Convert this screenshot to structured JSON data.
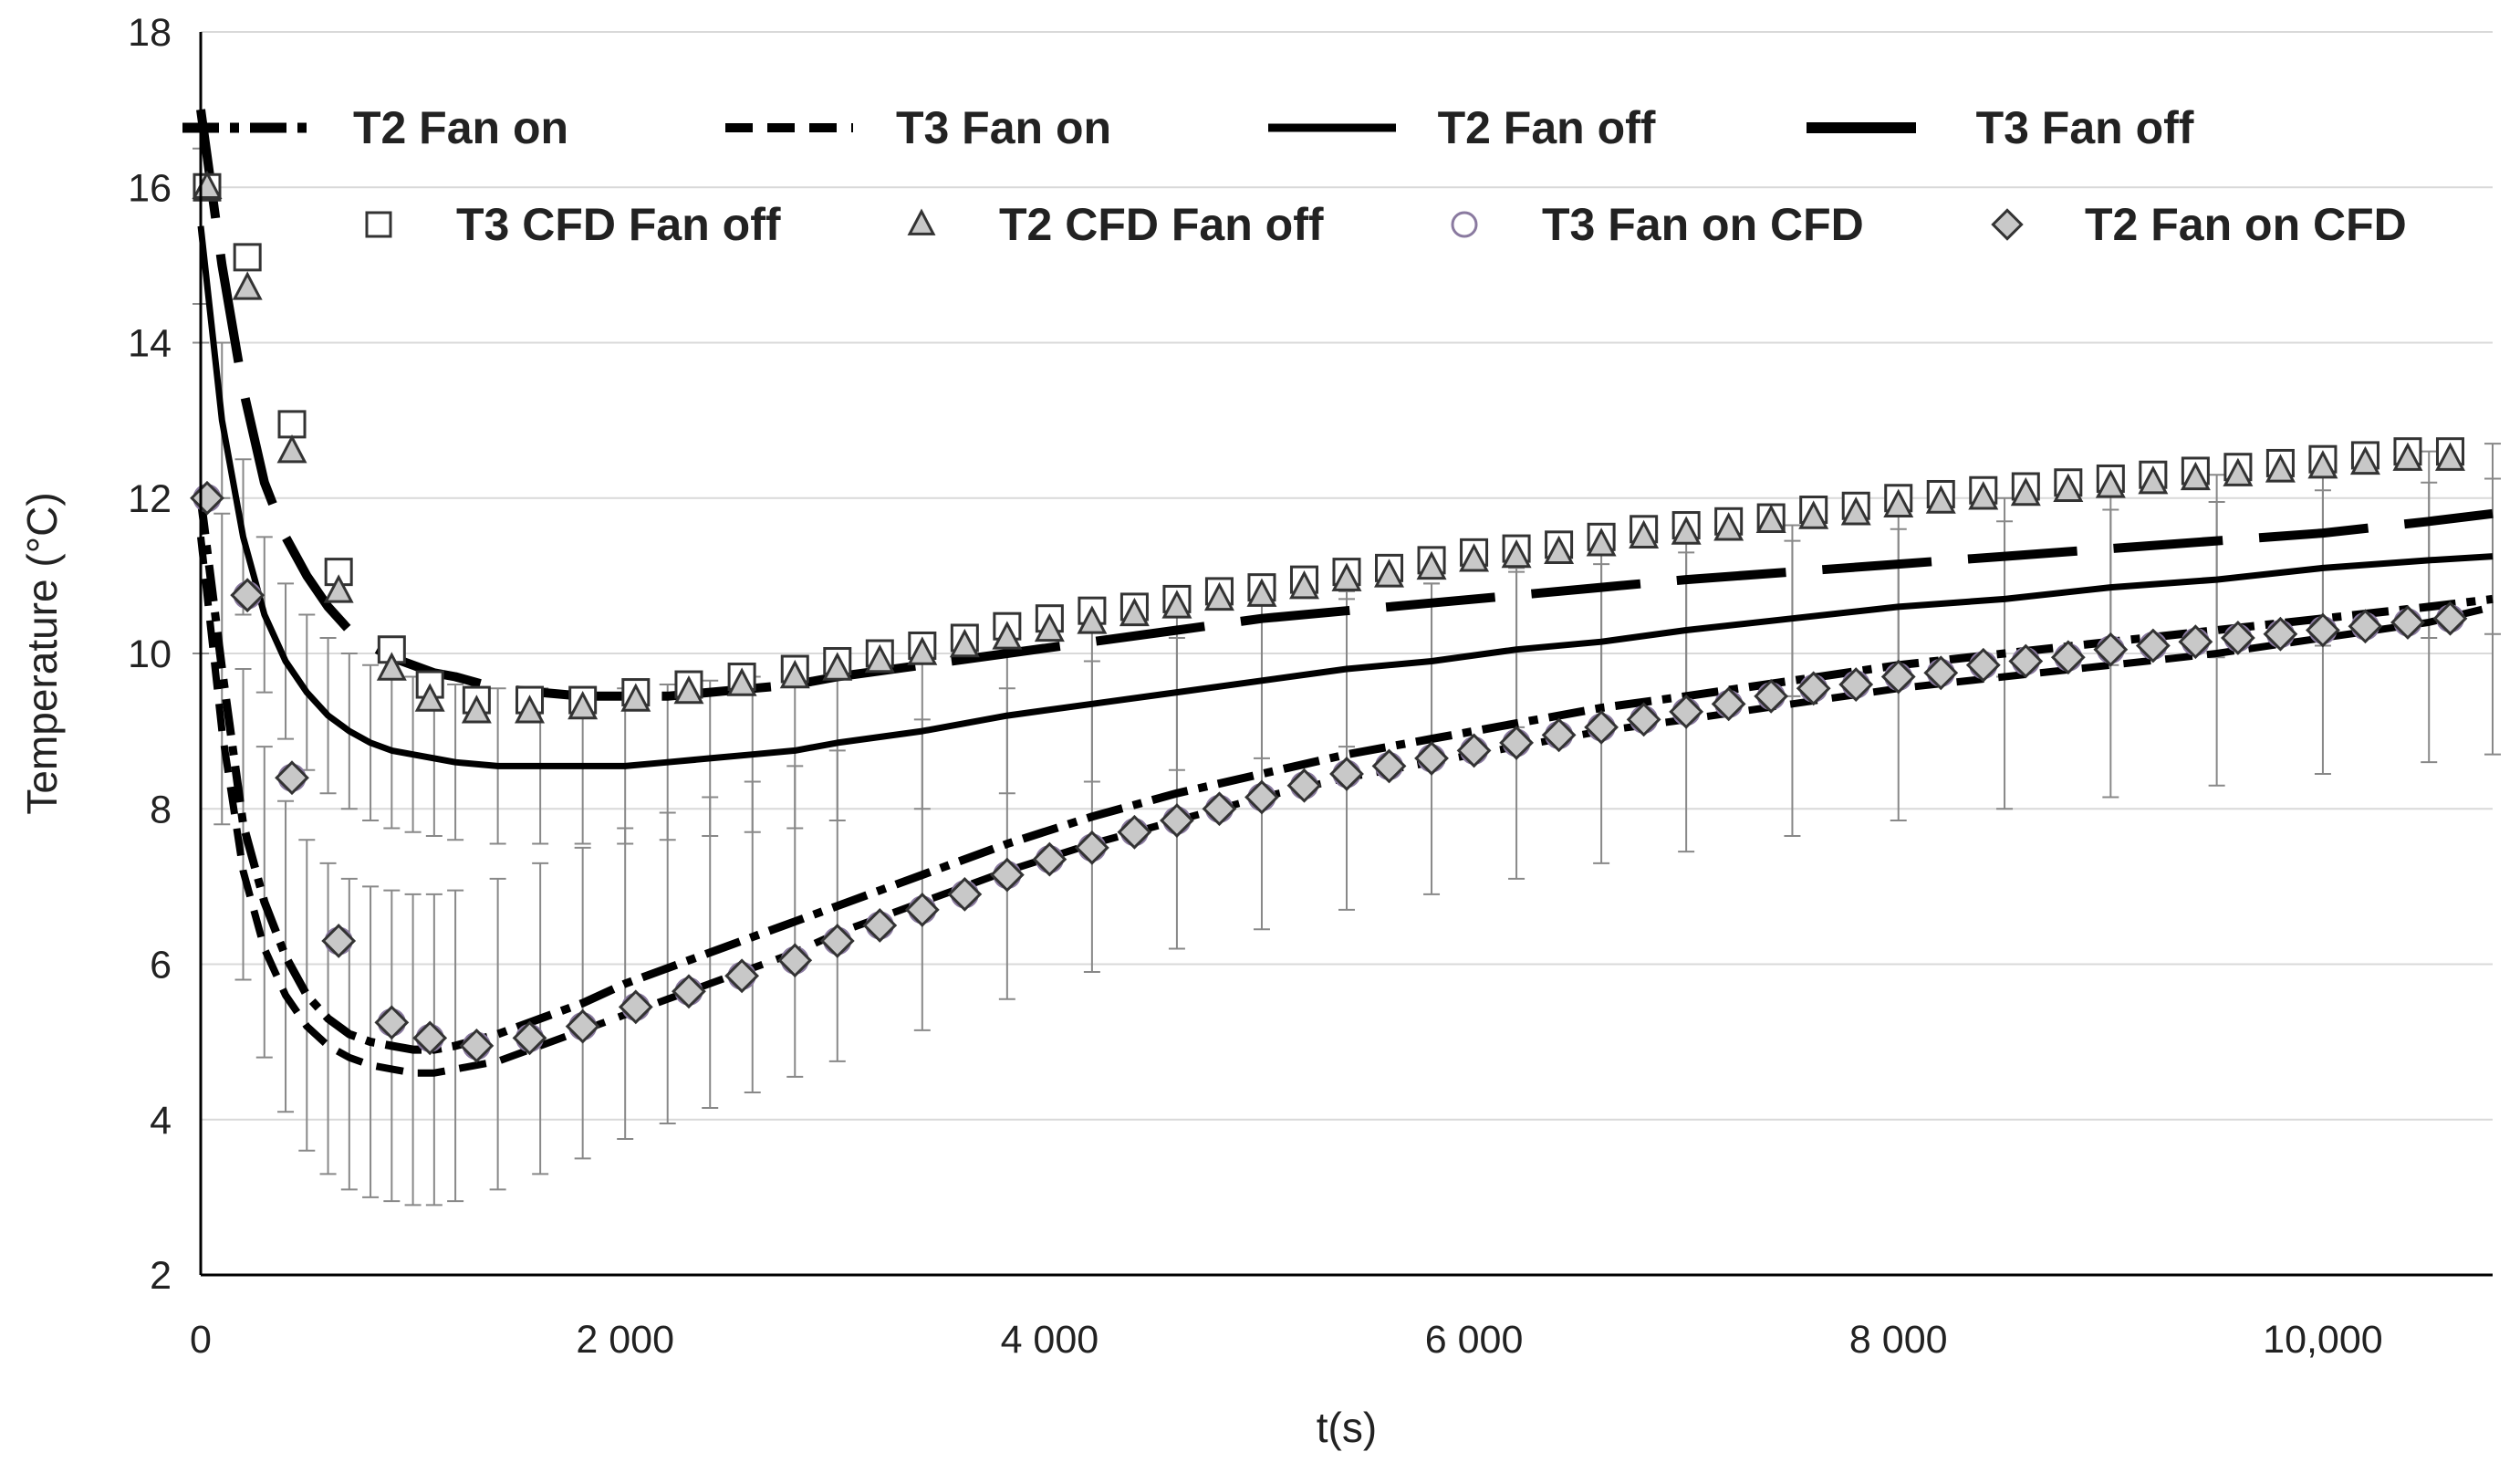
{
  "chart_data": {
    "type": "line",
    "title": "",
    "xlabel": "t(s)",
    "ylabel": "Temperature (°C)",
    "xlim": [
      0,
      10800
    ],
    "ylim": [
      2,
      18
    ],
    "grid": true,
    "legend_position": "top",
    "x_ticks": [
      {
        "value": 0,
        "label": "0"
      },
      {
        "value": 2000,
        "label": "2 000"
      },
      {
        "value": 4000,
        "label": "4 000"
      },
      {
        "value": 6000,
        "label": "6 000"
      },
      {
        "value": 8000,
        "label": "8 000"
      },
      {
        "value": 10000,
        "label": "10,000"
      }
    ],
    "y_ticks": [
      {
        "value": 2,
        "label": "2"
      },
      {
        "value": 4,
        "label": "4"
      },
      {
        "value": 6,
        "label": "6"
      },
      {
        "value": 8,
        "label": "8"
      },
      {
        "value": 10,
        "label": "10"
      },
      {
        "value": 12,
        "label": "12"
      },
      {
        "value": 14,
        "label": "14"
      },
      {
        "value": 16,
        "label": "16"
      },
      {
        "value": 18,
        "label": "18"
      }
    ],
    "series": [
      {
        "name": "T2 Fan on",
        "kind": "line",
        "style": "dash-dot",
        "x": [
          0,
          100,
          200,
          300,
          400,
          500,
          600,
          700,
          800,
          900,
          1000,
          1100,
          1200,
          1400,
          1600,
          1800,
          2000,
          2200,
          2400,
          2600,
          2800,
          3000,
          3400,
          3800,
          4200,
          4600,
          5000,
          5400,
          5800,
          6200,
          6600,
          7000,
          7500,
          8000,
          8500,
          9000,
          9500,
          10000,
          10500,
          10800
        ],
        "y": [
          12.0,
          9.8,
          7.8,
          6.8,
          6.1,
          5.6,
          5.3,
          5.1,
          5.0,
          4.95,
          4.9,
          4.9,
          4.95,
          5.1,
          5.3,
          5.5,
          5.75,
          5.95,
          6.15,
          6.35,
          6.55,
          6.75,
          7.15,
          7.55,
          7.9,
          8.2,
          8.45,
          8.7,
          8.9,
          9.1,
          9.3,
          9.45,
          9.65,
          9.85,
          10.0,
          10.15,
          10.3,
          10.45,
          10.6,
          10.7
        ],
        "error": 2.0
      },
      {
        "name": "T3 Fan on",
        "kind": "line",
        "style": "dashed",
        "x": [
          0,
          100,
          200,
          300,
          400,
          500,
          600,
          700,
          800,
          900,
          1000,
          1100,
          1200,
          1400,
          1600,
          1800,
          2000,
          2200,
          2400,
          2600,
          2800,
          3000,
          3400,
          3800,
          4200,
          4600,
          5000,
          5400,
          5800,
          6200,
          6600,
          7000,
          7500,
          8000,
          8500,
          9000,
          9500,
          10000,
          10500,
          10800
        ],
        "y": [
          11.5,
          9.0,
          7.2,
          6.2,
          5.6,
          5.2,
          4.95,
          4.8,
          4.7,
          4.65,
          4.6,
          4.6,
          4.65,
          4.75,
          4.95,
          5.15,
          5.35,
          5.55,
          5.75,
          5.95,
          6.15,
          6.4,
          6.8,
          7.2,
          7.55,
          7.85,
          8.15,
          8.4,
          8.6,
          8.8,
          9.0,
          9.15,
          9.35,
          9.55,
          9.7,
          9.85,
          10.0,
          10.2,
          10.4,
          10.6
        ],
        "error": 0
      },
      {
        "name": "T2 Fan off",
        "kind": "line",
        "style": "solid",
        "x": [
          0,
          100,
          200,
          300,
          400,
          500,
          600,
          700,
          800,
          900,
          1000,
          1100,
          1200,
          1400,
          1600,
          1800,
          2000,
          2200,
          2400,
          2600,
          2800,
          3000,
          3400,
          3800,
          4200,
          4600,
          5000,
          5400,
          5800,
          6200,
          6600,
          7000,
          7500,
          8000,
          8500,
          9000,
          9500,
          10000,
          10500,
          10800
        ],
        "y": [
          15.5,
          13.0,
          11.5,
          10.5,
          9.9,
          9.5,
          9.2,
          9.0,
          8.85,
          8.75,
          8.7,
          8.65,
          8.6,
          8.55,
          8.55,
          8.55,
          8.55,
          8.6,
          8.65,
          8.7,
          8.75,
          8.85,
          9.0,
          9.2,
          9.35,
          9.5,
          9.65,
          9.8,
          9.9,
          10.05,
          10.15,
          10.3,
          10.45,
          10.6,
          10.7,
          10.85,
          10.95,
          11.1,
          11.2,
          11.25
        ],
        "error": 1.0
      },
      {
        "name": "T3 Fan off",
        "kind": "line",
        "style": "long-dash",
        "x": [
          0,
          100,
          200,
          300,
          400,
          500,
          600,
          700,
          800,
          900,
          1000,
          1100,
          1200,
          1400,
          1600,
          1800,
          2000,
          2200,
          2400,
          2600,
          2800,
          3000,
          3400,
          3800,
          4200,
          4600,
          5000,
          5400,
          5800,
          6200,
          6600,
          7000,
          7500,
          8000,
          8500,
          9000,
          9500,
          10000,
          10500,
          10800
        ],
        "y": [
          17.0,
          15.0,
          13.4,
          12.2,
          11.5,
          11.0,
          10.6,
          10.3,
          10.1,
          9.95,
          9.85,
          9.75,
          9.7,
          9.55,
          9.5,
          9.45,
          9.45,
          9.45,
          9.5,
          9.55,
          9.6,
          9.7,
          9.85,
          10.0,
          10.15,
          10.3,
          10.45,
          10.55,
          10.65,
          10.75,
          10.85,
          10.95,
          11.05,
          11.15,
          11.25,
          11.35,
          11.45,
          11.55,
          11.7,
          11.8
        ],
        "error": 0
      },
      {
        "name": "T3 CFD Fan off",
        "kind": "marker",
        "marker": "square",
        "x": [
          30,
          220,
          430,
          650,
          900,
          1080,
          1300,
          1550,
          1800,
          2050,
          2300,
          2550,
          2800,
          3000,
          3200,
          3400,
          3600,
          3800,
          4000,
          4200,
          4400,
          4600,
          4800,
          5000,
          5200,
          5400,
          5600,
          5800,
          6000,
          6200,
          6400,
          6600,
          6800,
          7000,
          7200,
          7400,
          7600,
          7800,
          8000,
          8200,
          8400,
          8600,
          8800,
          9000,
          9200,
          9400,
          9600,
          9800,
          10000,
          10200,
          10400,
          10600
        ],
        "y": [
          16.0,
          15.1,
          12.95,
          11.05,
          10.05,
          9.6,
          9.4,
          9.4,
          9.4,
          9.5,
          9.6,
          9.7,
          9.8,
          9.9,
          10.0,
          10.1,
          10.2,
          10.35,
          10.45,
          10.55,
          10.6,
          10.7,
          10.8,
          10.85,
          10.95,
          11.05,
          11.1,
          11.2,
          11.3,
          11.35,
          11.4,
          11.5,
          11.6,
          11.65,
          11.7,
          11.75,
          11.85,
          11.9,
          12.0,
          12.05,
          12.1,
          12.15,
          12.2,
          12.25,
          12.3,
          12.35,
          12.4,
          12.45,
          12.5,
          12.55,
          12.6,
          12.6
        ]
      },
      {
        "name": "T2 CFD Fan off",
        "kind": "marker",
        "marker": "triangle",
        "x": [
          30,
          220,
          430,
          650,
          900,
          1080,
          1300,
          1550,
          1800,
          2050,
          2300,
          2550,
          2800,
          3000,
          3200,
          3400,
          3600,
          3800,
          4000,
          4200,
          4400,
          4600,
          4800,
          5000,
          5200,
          5400,
          5600,
          5800,
          6000,
          6200,
          6400,
          6600,
          6800,
          7000,
          7200,
          7400,
          7600,
          7800,
          8000,
          8200,
          8400,
          8600,
          8800,
          9000,
          9200,
          9400,
          9600,
          9800,
          10000,
          10200,
          10400,
          10600
        ],
        "y": [
          16.0,
          14.7,
          12.6,
          10.8,
          9.8,
          9.4,
          9.25,
          9.25,
          9.3,
          9.4,
          9.5,
          9.6,
          9.7,
          9.8,
          9.9,
          10.0,
          10.1,
          10.2,
          10.3,
          10.4,
          10.5,
          10.6,
          10.7,
          10.75,
          10.85,
          10.95,
          11.0,
          11.1,
          11.2,
          11.25,
          11.3,
          11.4,
          11.5,
          11.55,
          11.6,
          11.7,
          11.75,
          11.8,
          11.9,
          11.95,
          12.0,
          12.05,
          12.1,
          12.15,
          12.2,
          12.25,
          12.3,
          12.35,
          12.4,
          12.45,
          12.5,
          12.5
        ]
      },
      {
        "name": "T3 Fan on CFD",
        "kind": "marker",
        "marker": "circle",
        "x": [
          30,
          220,
          430,
          650,
          900,
          1080,
          1300,
          1550,
          1800,
          2050,
          2300,
          2550,
          2800,
          3000,
          3200,
          3400,
          3600,
          3800,
          4000,
          4200,
          4400,
          4600,
          4800,
          5000,
          5200,
          5400,
          5600,
          5800,
          6000,
          6200,
          6400,
          6600,
          6800,
          7000,
          7200,
          7400,
          7600,
          7800,
          8000,
          8200,
          8400,
          8600,
          8800,
          9000,
          9200,
          9400,
          9600,
          9800,
          10000,
          10200,
          10400,
          10600
        ],
        "y": [
          12.0,
          10.75,
          8.4,
          6.3,
          5.25,
          5.05,
          4.95,
          5.05,
          5.2,
          5.45,
          5.65,
          5.85,
          6.05,
          6.3,
          6.5,
          6.7,
          6.9,
          7.15,
          7.35,
          7.5,
          7.7,
          7.85,
          8.0,
          8.15,
          8.3,
          8.45,
          8.55,
          8.65,
          8.75,
          8.85,
          8.95,
          9.05,
          9.15,
          9.25,
          9.35,
          9.45,
          9.55,
          9.6,
          9.7,
          9.75,
          9.85,
          9.9,
          9.95,
          10.05,
          10.1,
          10.15,
          10.2,
          10.25,
          10.3,
          10.35,
          10.4,
          10.45
        ]
      },
      {
        "name": "T2 Fan on CFD",
        "kind": "marker",
        "marker": "diamond",
        "x": [
          30,
          220,
          430,
          650,
          900,
          1080,
          1300,
          1550,
          1800,
          2050,
          2300,
          2550,
          2800,
          3000,
          3200,
          3400,
          3600,
          3800,
          4000,
          4200,
          4400,
          4600,
          4800,
          5000,
          5200,
          5400,
          5600,
          5800,
          6000,
          6200,
          6400,
          6600,
          6800,
          7000,
          7200,
          7400,
          7600,
          7800,
          8000,
          8200,
          8400,
          8600,
          8800,
          9000,
          9200,
          9400,
          9600,
          9800,
          10000,
          10200,
          10400,
          10600
        ],
        "y": [
          12.0,
          10.75,
          8.4,
          6.3,
          5.25,
          5.05,
          4.95,
          5.05,
          5.2,
          5.45,
          5.65,
          5.85,
          6.05,
          6.3,
          6.5,
          6.7,
          6.9,
          7.15,
          7.35,
          7.5,
          7.7,
          7.85,
          8.0,
          8.15,
          8.3,
          8.45,
          8.55,
          8.65,
          8.75,
          8.85,
          8.95,
          9.05,
          9.15,
          9.25,
          9.35,
          9.45,
          9.55,
          9.6,
          9.7,
          9.75,
          9.85,
          9.9,
          9.95,
          10.05,
          10.1,
          10.15,
          10.2,
          10.25,
          10.3,
          10.35,
          10.4,
          10.45
        ]
      }
    ]
  },
  "legend": {
    "items": [
      {
        "label": "T2 Fan on",
        "symbol": "dash-dot"
      },
      {
        "label": "T3 Fan on",
        "symbol": "dashed"
      },
      {
        "label": "T2 Fan off",
        "symbol": "solid"
      },
      {
        "label": "T3 Fan off",
        "symbol": "long-dash"
      },
      {
        "label": "T3 CFD Fan off",
        "symbol": "square"
      },
      {
        "label": "T2 CFD Fan off",
        "symbol": "triangle"
      },
      {
        "label": "T3 Fan on CFD",
        "symbol": "circle"
      },
      {
        "label": "T2 Fan on CFD",
        "symbol": "diamond"
      }
    ]
  },
  "colors": {
    "line": "#000000",
    "grid": "#d9d9d9",
    "errorbar": "#888888",
    "marker_fill": "#c8c8c8",
    "marker_fill_open": "#ffffff",
    "marker_stroke": "#333333",
    "circle_stroke": "#8a7aa0"
  }
}
